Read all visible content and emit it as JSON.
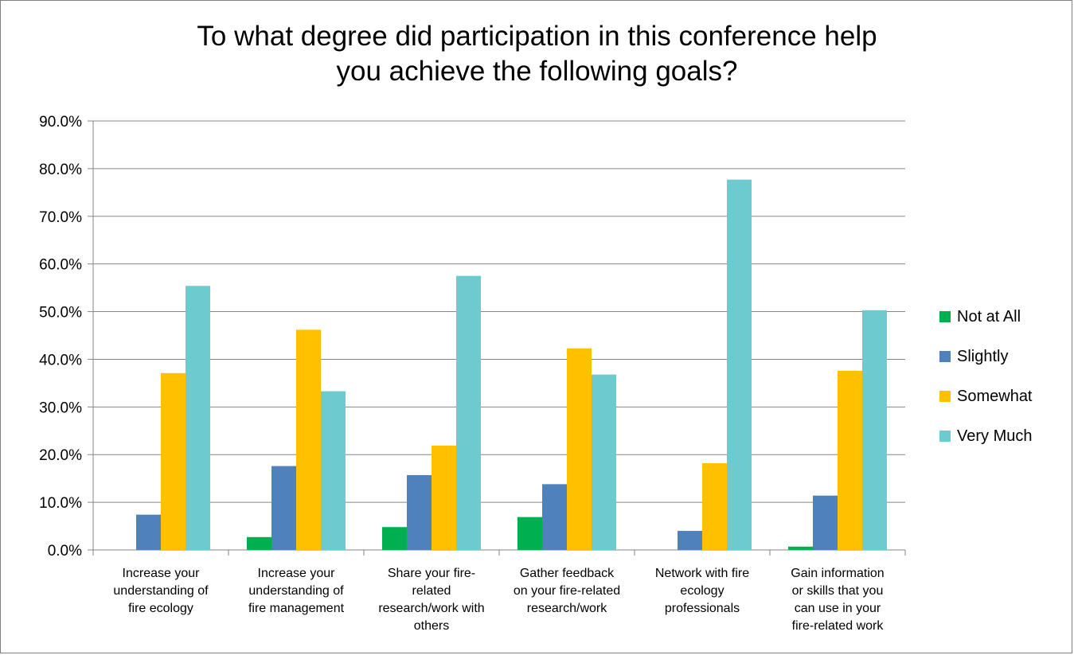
{
  "chart_data": {
    "type": "bar",
    "title_lines": [
      "To what degree did participation in this conference help",
      "you achieve the following goals?"
    ],
    "categories": [
      {
        "lines": [
          "Increase your",
          "understanding of",
          "fire ecology"
        ]
      },
      {
        "lines": [
          "Increase your",
          "understanding of",
          "fire management"
        ]
      },
      {
        "lines": [
          "Share your fire-",
          "related",
          "research/work with",
          "others"
        ]
      },
      {
        "lines": [
          "Gather feedback",
          "on your fire-related",
          "research/work"
        ]
      },
      {
        "lines": [
          "Network with fire",
          "ecology",
          "professionals"
        ]
      },
      {
        "lines": [
          "Gain information",
          "or skills that you",
          "can use in your",
          "fire-related work"
        ]
      }
    ],
    "series": [
      {
        "name": "Not at All",
        "color": "#00b050",
        "values": [
          0.0,
          2.7,
          4.8,
          6.9,
          0.0,
          0.7
        ]
      },
      {
        "name": "Slightly",
        "color": "#4f81bd",
        "values": [
          7.4,
          17.6,
          15.7,
          13.8,
          4.0,
          11.4
        ]
      },
      {
        "name": "Somewhat",
        "color": "#ffc000",
        "values": [
          37.1,
          46.2,
          21.9,
          42.3,
          18.2,
          37.6
        ]
      },
      {
        "name": "Very Much",
        "color": "#6dcbcf",
        "values": [
          55.4,
          33.3,
          57.5,
          36.8,
          77.7,
          50.3
        ]
      }
    ],
    "yticks": [
      "0.0%",
      "10.0%",
      "20.0%",
      "30.0%",
      "40.0%",
      "50.0%",
      "60.0%",
      "70.0%",
      "80.0%",
      "90.0%"
    ],
    "ylim": [
      0,
      90
    ],
    "grid": true,
    "legend_position": "right"
  }
}
